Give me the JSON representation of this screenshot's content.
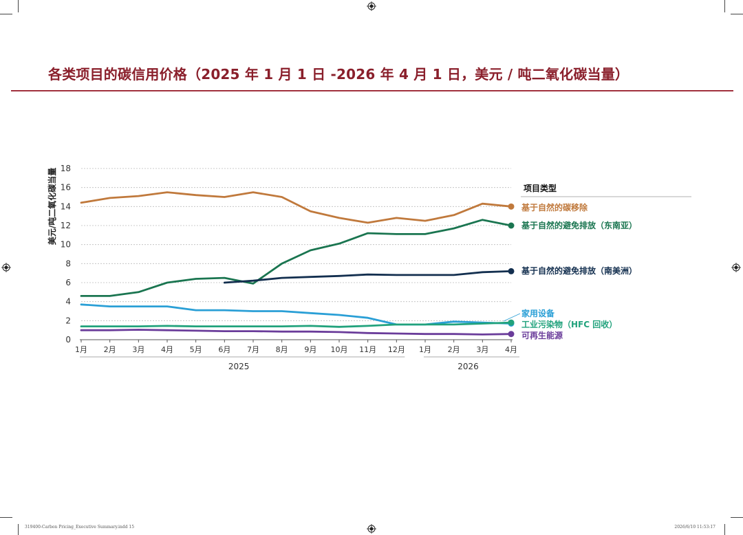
{
  "page": {
    "title": "各类项目的碳信用价格（2025 年 1 月 1 日 -2026 年 4 月 1 日，美元 / 吨二氧化碳当量）",
    "footer_left": "319400-Carbon Pricing_Executive Summary.indd   15",
    "footer_right": "2026/6/10   11:53:17"
  },
  "chart_data": {
    "type": "line",
    "title": "",
    "ylabel": "美元/吨二氧化碳当量",
    "ylim": [
      0,
      18
    ],
    "yticks": [
      "0",
      "2",
      "4",
      "6",
      "8",
      "10",
      "12",
      "14",
      "16",
      "18"
    ],
    "grid": true,
    "categories": [
      "1月",
      "2月",
      "3月",
      "4月",
      "5月",
      "6月",
      "7月",
      "8月",
      "9月",
      "10月",
      "11月",
      "12月",
      "1月",
      "2月",
      "3月",
      "4月"
    ],
    "year_groups": [
      {
        "label": "2025",
        "start": 0,
        "end": 11
      },
      {
        "label": "2026",
        "start": 12,
        "end": 15
      }
    ],
    "legend_title": "项目类型",
    "legend_position": "right",
    "series": [
      {
        "name": "基于自然的碳移除",
        "color": "#c0793c",
        "values": [
          14.4,
          14.9,
          15.1,
          15.5,
          15.2,
          15.0,
          15.5,
          15.0,
          13.5,
          12.8,
          12.3,
          12.8,
          12.5,
          13.1,
          14.3,
          14.0
        ]
      },
      {
        "name": "基于自然的避免排放（东南亚）",
        "color": "#1a7550",
        "values": [
          4.6,
          4.6,
          5.0,
          6.0,
          6.4,
          6.5,
          5.9,
          8.0,
          9.4,
          10.1,
          11.2,
          11.1,
          11.1,
          11.7,
          12.6,
          12.0
        ]
      },
      {
        "name": "基于自然的避免排放（南美洲）",
        "color": "#132f4f",
        "values": [
          null,
          null,
          null,
          null,
          null,
          6.0,
          6.2,
          6.5,
          6.6,
          6.7,
          6.85,
          6.8,
          6.8,
          6.8,
          7.1,
          7.2
        ]
      },
      {
        "name": "家用设备",
        "color": "#2a9fd6",
        "values": [
          3.7,
          3.5,
          3.5,
          3.5,
          3.1,
          3.1,
          3.0,
          3.0,
          2.8,
          2.6,
          2.3,
          1.6,
          1.6,
          1.9,
          1.8,
          1.7
        ]
      },
      {
        "name": "工业污染物（HFC 回收）",
        "color": "#21a27c",
        "values": [
          1.4,
          1.4,
          1.4,
          1.45,
          1.4,
          1.4,
          1.4,
          1.4,
          1.45,
          1.35,
          1.45,
          1.6,
          1.6,
          1.6,
          1.7,
          1.8
        ]
      },
      {
        "name": "可再生能源",
        "color": "#6a3c9a",
        "values": [
          1.0,
          1.0,
          1.05,
          1.0,
          0.95,
          0.9,
          0.9,
          0.85,
          0.85,
          0.8,
          0.7,
          0.65,
          0.6,
          0.6,
          0.55,
          0.6
        ]
      }
    ]
  }
}
